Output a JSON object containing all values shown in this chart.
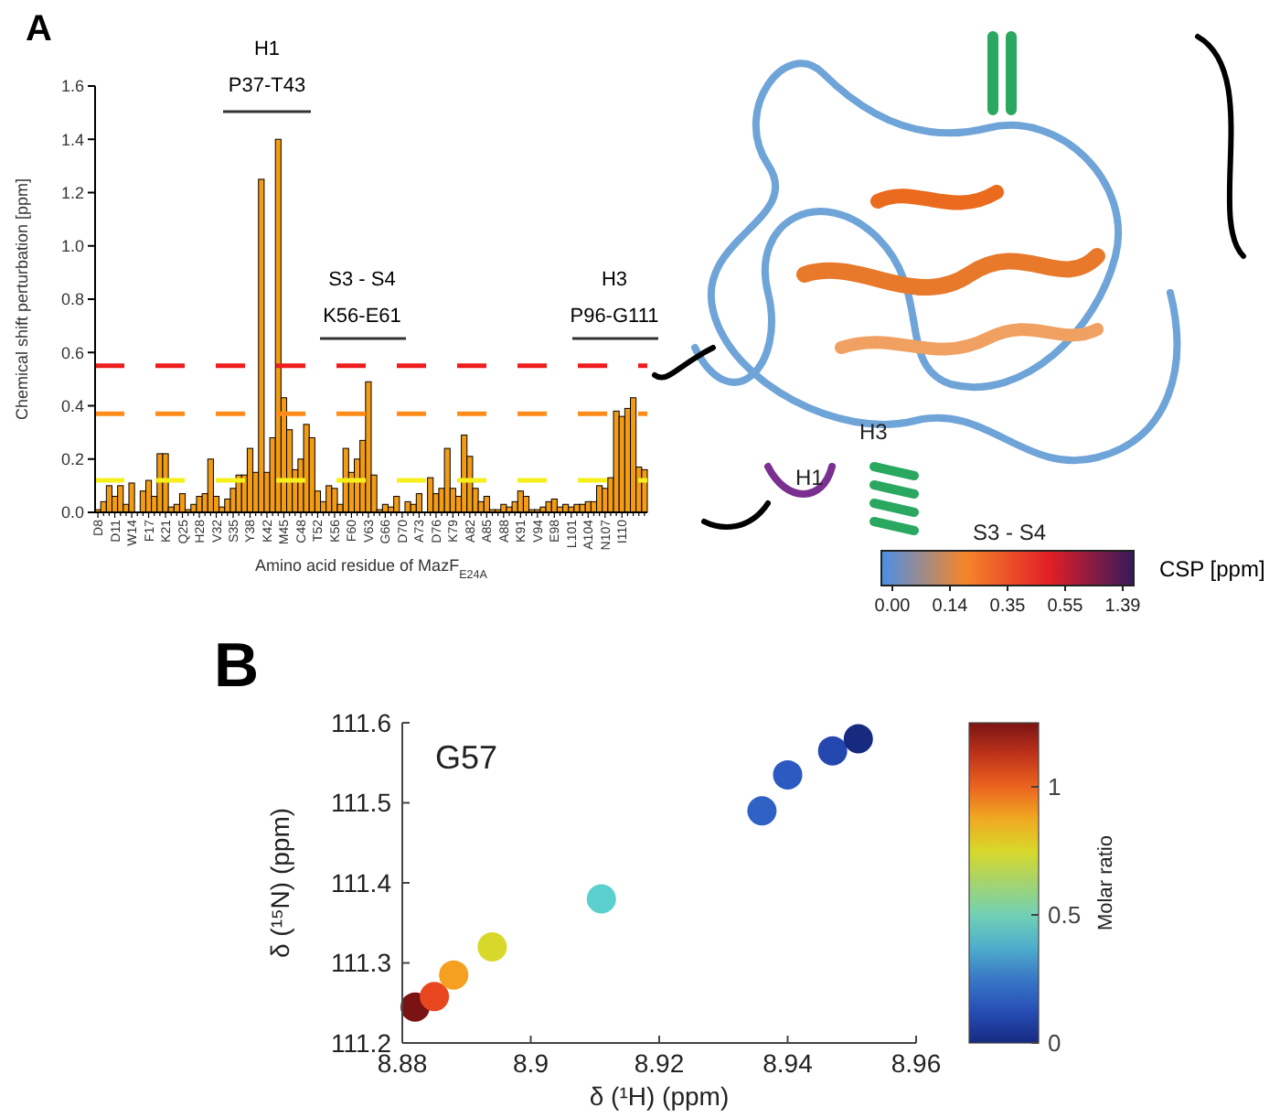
{
  "chart_data": [
    {
      "type": "bar",
      "xlabel": "Amino acid residue of MazF$_{E24A}$",
      "ylabel": "Chemical shift perturbation [ppm]",
      "annotations": [
        "A",
        "H1",
        "P37-T43",
        "S3 - S4",
        "K56-E61",
        "H3",
        "P96-G111"
      ],
      "categories": [
        "D8",
        null,
        null,
        "D11",
        null,
        null,
        "W14",
        null,
        null,
        "F17",
        null,
        null,
        "K21",
        null,
        null,
        "Q25",
        null,
        null,
        "H28",
        null,
        null,
        "V32",
        null,
        null,
        "S35",
        null,
        null,
        "Y38",
        null,
        null,
        "K42",
        null,
        null,
        "M45",
        null,
        null,
        "C48",
        null,
        null,
        "T52",
        null,
        null,
        "K56",
        null,
        null,
        "F60",
        null,
        null,
        "V63",
        null,
        null,
        "G66",
        null,
        null,
        "D70",
        null,
        null,
        "A73",
        null,
        null,
        "D76",
        null,
        null,
        "K79",
        null,
        null,
        "A82",
        null,
        null,
        "A85",
        null,
        null,
        "A88",
        null,
        null,
        "K91",
        null,
        null,
        "V94",
        null,
        null,
        "E98",
        null,
        null,
        "L101",
        null,
        null,
        "A104",
        null,
        null,
        "N107",
        null,
        null,
        "I110",
        null,
        null,
        null,
        null
      ],
      "values": [
        0.01,
        0.04,
        0.1,
        0.06,
        0.1,
        0.03,
        0.11,
        0,
        0.08,
        0.12,
        0.06,
        0.22,
        0.22,
        0.02,
        0.03,
        0.07,
        0.01,
        0.03,
        0.06,
        0.07,
        0.2,
        0.06,
        0.02,
        0.05,
        0.09,
        0.14,
        0.14,
        0.24,
        0.15,
        1.25,
        0.15,
        0.28,
        1.4,
        0.43,
        0.31,
        0.16,
        0.2,
        0.33,
        0.28,
        0.08,
        0.04,
        0.1,
        0.09,
        0.03,
        0.24,
        0.15,
        0.2,
        0.27,
        0.49,
        0.14,
        0.01,
        0.03,
        0.02,
        0.06,
        0,
        0.04,
        0.03,
        0.07,
        0,
        0.13,
        0.07,
        0.09,
        0.24,
        0.09,
        0.06,
        0.29,
        0.21,
        0.09,
        0.04,
        0.06,
        0.01,
        0.01,
        0.03,
        0.02,
        0.04,
        0.08,
        0.06,
        0.01,
        0.01,
        0.02,
        0.04,
        0.05,
        0.02,
        0.03,
        0.02,
        0.03,
        0.03,
        0.04,
        0.04,
        0.1,
        0.09,
        0.13,
        0.38,
        0.36,
        0.39,
        0.43,
        0.17,
        0.16
      ],
      "color": "#f29b14",
      "ylim": [
        0,
        1.6
      ],
      "yticks": [
        {
          "value": 0,
          "label": "0.0"
        },
        {
          "value": 0.2,
          "label": "0.2"
        },
        {
          "value": 0.4,
          "label": "0.4"
        },
        {
          "value": 0.6,
          "label": "0.6"
        },
        {
          "value": 0.8,
          "label": "0.8"
        },
        {
          "value": 1,
          "label": "1.0"
        },
        {
          "value": 1.2,
          "label": "1.2"
        },
        {
          "value": 1.4,
          "label": "1.4"
        },
        {
          "value": 1.6,
          "label": "1.6"
        }
      ],
      "ref_lines": [
        {
          "axis": "y",
          "value": 0.55,
          "color": "#ee1c1c",
          "line_style": "dashed"
        },
        {
          "axis": "y",
          "value": 0.37,
          "color": "#ff8c1a",
          "line_style": "dashed"
        },
        {
          "axis": "y",
          "value": 0.12,
          "color": "#f5f01a",
          "line_style": "dashed"
        }
      ]
    },
    {
      "type": "scatter",
      "xlabel": "δ (¹H) (ppm)",
      "ylabel": "δ (¹⁵N) (ppm)",
      "clabel": "Molar ratio",
      "annotations": [
        "B",
        "G57"
      ],
      "x": [
        8.882,
        8.885,
        8.888,
        8.894,
        8.911,
        8.936,
        8.94,
        8.947,
        8.951
      ],
      "values": [
        111.245,
        111.258,
        111.285,
        111.32,
        111.38,
        111.49,
        111.535,
        111.565,
        111.58
      ],
      "cvalues": [
        1.25,
        1.05,
        0.9,
        0.75,
        0.45,
        0.2,
        0.17,
        0.1,
        0.03
      ],
      "colors": [
        "#7a1414",
        "#e8461e",
        "#f5a020",
        "#d8d82a",
        "#5ccfcf",
        "#2f62c4",
        "#2c5ac0",
        "#2448b0",
        "#162a80"
      ],
      "marker": "circle",
      "xlim": [
        8.88,
        8.96
      ],
      "xticks": [
        8.88,
        8.9,
        8.92,
        8.94,
        8.96
      ],
      "ylim": [
        111.2,
        111.6
      ],
      "yticks": [
        111.2,
        111.3,
        111.4,
        111.5,
        111.6
      ],
      "clim": [
        0,
        1.25
      ],
      "cticks": [
        0,
        0.5,
        1
      ]
    },
    {
      "type": "other",
      "annotations": [
        "H1",
        "H3",
        "S3 - S4",
        "0.00",
        "0.14",
        "0.35",
        "0.55",
        "1.39"
      ],
      "clabel": "CSP [ppm]",
      "colors": [
        "#4a8fe6",
        "#f5862a",
        "#e21e26",
        "#341a5c"
      ]
    }
  ]
}
